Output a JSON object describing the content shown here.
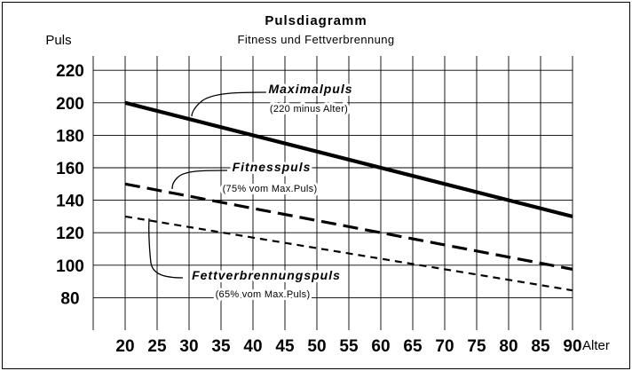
{
  "chart_data": {
    "type": "line",
    "title": "Pulsdiagramm",
    "subtitle": "Fitness und Fettverbrennung",
    "ylabel": "Puls",
    "xlabel": "Alter",
    "x": [
      20,
      90
    ],
    "xticks": [
      20,
      25,
      30,
      35,
      40,
      45,
      50,
      55,
      60,
      65,
      70,
      75,
      80,
      85,
      90
    ],
    "yticks": [
      80,
      100,
      120,
      140,
      160,
      180,
      200,
      220
    ],
    "xlim": [
      20,
      90
    ],
    "ylim": [
      80,
      220
    ],
    "grid": true,
    "legend": "none",
    "series": [
      {
        "name": "Maximalpuls",
        "note": "(220 minus Alter)",
        "values": [
          200,
          130
        ],
        "style": "solid"
      },
      {
        "name": "Fitnesspuls",
        "note": "(75% vom Max.Puls)",
        "values": [
          150,
          97.5
        ],
        "style": "long-dash"
      },
      {
        "name": "Fettverbrennungspuls",
        "note": "(65% vom Max.Puls)",
        "values": [
          130,
          84.5
        ],
        "style": "short-dash"
      }
    ]
  }
}
